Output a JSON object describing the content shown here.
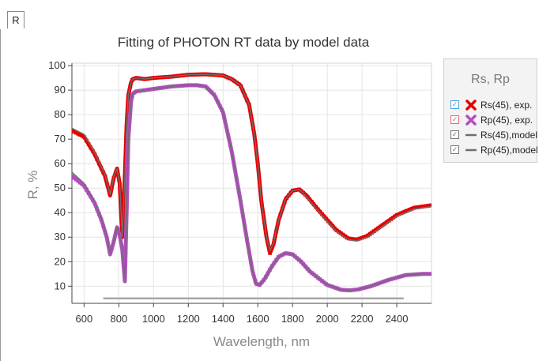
{
  "tab": {
    "label": "R"
  },
  "legend": {
    "title": "Rs, Rp",
    "items": [
      {
        "label": "Rs(45), exp.",
        "symbol": "x-mark",
        "color": "#e60000",
        "check_color": "#4aa3df"
      },
      {
        "label": "Rp(45), exp.",
        "symbol": "x-mark",
        "color": "#b44fc0",
        "check_color": "#e06b6b"
      },
      {
        "label": "Rs(45),model",
        "symbol": "line",
        "color": "#6e6e6e",
        "check_color": "#777777"
      },
      {
        "label": "Rp(45),model",
        "symbol": "line",
        "color": "#6e6e6e",
        "check_color": "#777777"
      }
    ]
  },
  "chart_data": {
    "type": "line",
    "title": "Fitting of PHOTON RT data by model data",
    "xlabel": "Wavelength, nm",
    "ylabel": "R, %",
    "xlim": [
      530,
      2600
    ],
    "ylim": [
      3,
      101
    ],
    "xticks": [
      600,
      800,
      1000,
      1200,
      1400,
      1600,
      1800,
      2000,
      2200,
      2400
    ],
    "yticks": [
      10,
      20,
      30,
      40,
      50,
      60,
      70,
      80,
      90,
      100
    ],
    "grid": true,
    "legend_position": "right",
    "series": [
      {
        "name": "Rs(45), exp.",
        "marker": "x",
        "color": "#e60000",
        "x": [
          530,
          600,
          660,
          720,
          750,
          770,
          790,
          805,
          820,
          835,
          845,
          855,
          870,
          880,
          900,
          950,
          1000,
          1100,
          1200,
          1300,
          1400,
          1450,
          1500,
          1550,
          1580,
          1600,
          1620,
          1650,
          1670,
          1690,
          1720,
          1760,
          1800,
          1840,
          1880,
          1950,
          2050,
          2120,
          2170,
          2230,
          2300,
          2400,
          2500,
          2600
        ],
        "y": [
          73.5,
          71,
          64,
          55,
          47,
          54,
          58,
          52,
          30,
          55,
          76,
          88,
          93,
          94.5,
          95,
          94.5,
          95,
          95.5,
          96.3,
          96.5,
          96,
          94.5,
          92,
          84,
          72,
          60,
          45,
          30,
          23.5,
          27,
          37,
          45.5,
          49,
          49.5,
          47,
          41,
          33,
          29.5,
          29,
          30.5,
          34,
          39,
          42,
          43
        ]
      },
      {
        "name": "Rp(45), exp.",
        "marker": "x",
        "color": "#b44fc0",
        "x": [
          530,
          600,
          660,
          700,
          730,
          750,
          770,
          790,
          805,
          820,
          835,
          845,
          855,
          870,
          880,
          900,
          950,
          1000,
          1100,
          1200,
          1250,
          1300,
          1350,
          1400,
          1450,
          1500,
          1540,
          1570,
          1590,
          1610,
          1640,
          1680,
          1720,
          1760,
          1800,
          1850,
          1900,
          2000,
          2080,
          2130,
          2180,
          2250,
          2350,
          2450,
          2550,
          2600
        ],
        "y": [
          55,
          51,
          44,
          37,
          30,
          23,
          28,
          34,
          31,
          25,
          12,
          40,
          70,
          85,
          88.5,
          89.5,
          90,
          90.5,
          91.5,
          92,
          92,
          91.5,
          88,
          81,
          65,
          45,
          28,
          16,
          11,
          10.5,
          13,
          18,
          22,
          23.5,
          23,
          20,
          16,
          10.5,
          8.5,
          8.3,
          8.7,
          10,
          12.5,
          14.5,
          15,
          15
        ]
      },
      {
        "name": "Rs(45),model",
        "color": "#6e6e6e",
        "x": [
          530,
          600,
          660,
          720,
          750,
          770,
          790,
          805,
          820,
          835,
          845,
          855,
          870,
          880,
          900,
          950,
          1000,
          1100,
          1200,
          1300,
          1400,
          1450,
          1500,
          1550,
          1580,
          1600,
          1620,
          1650,
          1670,
          1690,
          1720,
          1760,
          1800,
          1840,
          1880,
          1950,
          2050,
          2120,
          2170,
          2230,
          2300,
          2400,
          2500,
          2600
        ],
        "y": [
          74.5,
          72,
          64.5,
          55.5,
          47.5,
          54.5,
          58,
          52,
          30.5,
          55,
          76,
          88,
          93,
          94.5,
          95,
          94.5,
          95,
          95.5,
          96.3,
          96.5,
          96,
          94.5,
          92,
          84,
          72,
          60,
          45,
          30,
          24.5,
          27.5,
          37,
          45.5,
          49,
          49.5,
          46.5,
          40.5,
          32.5,
          29,
          28.5,
          30,
          33.5,
          38.5,
          41.5,
          42.5
        ]
      },
      {
        "name": "Rp(45),model",
        "color": "#6e6e6e",
        "x": [
          530,
          600,
          660,
          700,
          730,
          750,
          770,
          790,
          805,
          820,
          835,
          845,
          855,
          870,
          880,
          900,
          950,
          1000,
          1100,
          1200,
          1250,
          1300,
          1350,
          1400,
          1450,
          1500,
          1540,
          1570,
          1590,
          1610,
          1640,
          1680,
          1720,
          1760,
          1800,
          1850,
          1900,
          2000,
          2080,
          2130,
          2180,
          2250,
          2350,
          2450,
          2550,
          2600
        ],
        "y": [
          56.5,
          52,
          44.5,
          37.5,
          30.5,
          23.5,
          28.5,
          34,
          31,
          25,
          12.5,
          40,
          70,
          85,
          88.5,
          89.5,
          90,
          90.5,
          91.5,
          92,
          92,
          91.5,
          88,
          81,
          65,
          45,
          28,
          16,
          11,
          10.5,
          13,
          18,
          22,
          23.5,
          23,
          20,
          16,
          10.5,
          8.5,
          8.3,
          8.7,
          10,
          12.5,
          14.5,
          15,
          15
        ]
      }
    ],
    "range_bar": {
      "x": [
        710,
        2440
      ],
      "y": 5,
      "color": "#a8a8a8"
    }
  }
}
